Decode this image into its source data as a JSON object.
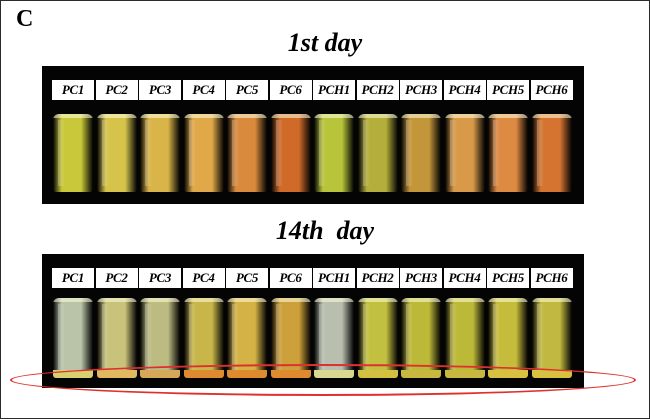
{
  "panel_letter": "C",
  "sections": [
    {
      "title": "1st day",
      "labels": [
        "PC1",
        "PC2",
        "PC3",
        "PC4",
        "PC5",
        "PC6",
        "PCH1",
        "PCH2",
        "PCH3",
        "PCH4",
        "PCH5",
        "PCH6"
      ],
      "colors": [
        "#c8c83a",
        "#d6c44a",
        "#d9b448",
        "#e0a848",
        "#d98a3c",
        "#cf6a28",
        "#b8c43a",
        "#b4ae3a",
        "#c4963a",
        "#d89a48",
        "#dd8a42",
        "#d47430"
      ]
    },
    {
      "title": "14th  day",
      "labels": [
        "PC1",
        "PC2",
        "PC3",
        "PC4",
        "PC5",
        "PC6",
        "PCH1",
        "PCH2",
        "PCH3",
        "PCH4",
        "PCH5",
        "PCH6"
      ],
      "colors": [
        "#b9c4a8",
        "#c8c27a",
        "#bcbc82",
        "#c8b64a",
        "#d4b246",
        "#cca03a",
        "#b8bfae",
        "#c2c040",
        "#bcb838",
        "#bcb838",
        "#c6bc3c",
        "#c0b840"
      ],
      "sediment": [
        "#d8d070",
        "#e0b860",
        "#d4a858",
        "#e08a30",
        "#e08a30",
        "#e08a30",
        "#d8d890",
        "#d4c040",
        "#c8b840",
        "#c8b840",
        "#d8c040",
        "#d8c040"
      ]
    }
  ]
}
